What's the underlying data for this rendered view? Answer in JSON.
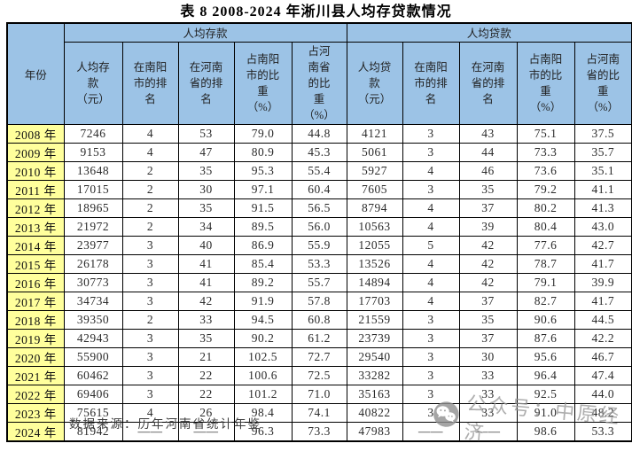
{
  "title": "表 8 2008-2024 年淅川县人均存贷款情况",
  "table": {
    "year_header": "年份",
    "groups": [
      {
        "label": "人均存款",
        "columns": [
          "人均存款（元）",
          "在南阳市的排名",
          "在河南省的排名",
          "占南阳市的比重（%）",
          "占河南省的比重（%）"
        ]
      },
      {
        "label": "人均贷款",
        "columns": [
          "人均贷款（元）",
          "在南阳市的排名",
          "在河南省的排名",
          "占南阳市的比重（%）",
          "占河南省的比重（%）"
        ]
      }
    ],
    "rows": [
      {
        "year": "2008 年",
        "values": [
          "7246",
          "4",
          "53",
          "79.0",
          "44.8",
          "4121",
          "3",
          "43",
          "75.1",
          "37.5"
        ]
      },
      {
        "year": "2009 年",
        "values": [
          "9153",
          "4",
          "47",
          "80.9",
          "45.3",
          "5061",
          "3",
          "44",
          "73.3",
          "35.7"
        ]
      },
      {
        "year": "2010 年",
        "values": [
          "13648",
          "2",
          "35",
          "95.3",
          "55.4",
          "5927",
          "4",
          "46",
          "73.6",
          "35.1"
        ]
      },
      {
        "year": "2011 年",
        "values": [
          "17015",
          "2",
          "30",
          "97.1",
          "60.4",
          "7605",
          "3",
          "35",
          "79.2",
          "41.1"
        ]
      },
      {
        "year": "2012 年",
        "values": [
          "18965",
          "2",
          "35",
          "91.5",
          "56.5",
          "8794",
          "4",
          "37",
          "80.2",
          "41.3"
        ]
      },
      {
        "year": "2013 年",
        "values": [
          "21972",
          "2",
          "34",
          "89.5",
          "56.0",
          "10563",
          "4",
          "39",
          "80.4",
          "43.0"
        ]
      },
      {
        "year": "2014 年",
        "values": [
          "23977",
          "3",
          "40",
          "86.9",
          "55.9",
          "12055",
          "5",
          "42",
          "77.6",
          "42.7"
        ]
      },
      {
        "year": "2015 年",
        "values": [
          "26178",
          "3",
          "41",
          "85.4",
          "53.3",
          "13526",
          "4",
          "42",
          "78.7",
          "41.7"
        ]
      },
      {
        "year": "2016 年",
        "values": [
          "30773",
          "3",
          "41",
          "89.2",
          "55.7",
          "14894",
          "4",
          "42",
          "79.1",
          "39.9"
        ]
      },
      {
        "year": "2017 年",
        "values": [
          "34734",
          "3",
          "42",
          "91.9",
          "57.8",
          "17703",
          "4",
          "37",
          "82.7",
          "41.7"
        ]
      },
      {
        "year": "2018 年",
        "values": [
          "39350",
          "2",
          "33",
          "94.5",
          "60.8",
          "21559",
          "3",
          "35",
          "90.6",
          "44.5"
        ]
      },
      {
        "year": "2019 年",
        "values": [
          "42943",
          "3",
          "35",
          "90.2",
          "61.2",
          "23739",
          "3",
          "37",
          "87.6",
          "42.2"
        ]
      },
      {
        "year": "2020 年",
        "values": [
          "55900",
          "3",
          "21",
          "102.5",
          "72.7",
          "29540",
          "3",
          "30",
          "95.6",
          "46.7"
        ]
      },
      {
        "year": "2021 年",
        "values": [
          "60462",
          "3",
          "22",
          "100.6",
          "72.5",
          "33282",
          "3",
          "33",
          "96.4",
          "47.4"
        ]
      },
      {
        "year": "2022 年",
        "values": [
          "69406",
          "3",
          "22",
          "101.2",
          "71.0",
          "35163",
          "3",
          "33",
          "92.5",
          "44.0"
        ]
      },
      {
        "year": "2023 年",
        "values": [
          "75615",
          "4",
          "26",
          "98.4",
          "74.1",
          "40822",
          "3",
          "33",
          "91.0",
          "48.2"
        ]
      },
      {
        "year": "2024 年",
        "values": [
          "81942",
          "——",
          "——",
          "96.3",
          "73.3",
          "47983",
          "——",
          "——",
          "98.6",
          "53.3"
        ]
      }
    ]
  },
  "footer": {
    "source": "数据来源：历年河南省统计年鉴"
  },
  "watermark": {
    "icon": "wechat-icon",
    "text": "公众号：中原经济"
  },
  "colors": {
    "header_bg": "#9cc3e6",
    "year_bg": "#ffff9c",
    "border": "#000000",
    "watermark_gray": "#9a9a9a"
  }
}
